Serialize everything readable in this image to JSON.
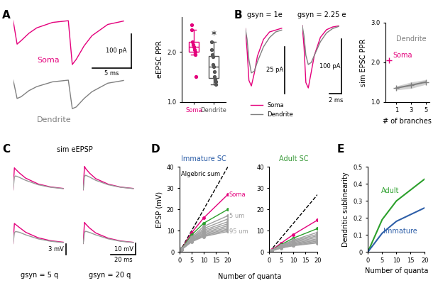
{
  "chart_data": [
    {
      "panel": "A",
      "type": "line",
      "tick_labels": false,
      "x": [
        0,
        0.5,
        1,
        2,
        3,
        5,
        7,
        7.5,
        8,
        9,
        10,
        12,
        14
      ],
      "xlim": [
        0,
        15
      ],
      "ylim": [
        -140,
        10
      ],
      "series": [
        {
          "name": "Soma",
          "color": "#e4007c",
          "values": [
            0,
            -70,
            -60,
            -38,
            -22,
            -6,
            -1,
            -130,
            -115,
            -75,
            -45,
            -12,
            -2
          ]
        }
      ],
      "scale_bars": [
        {
          "axis": "y",
          "value": 100,
          "label": "100 pA"
        },
        {
          "axis": "x",
          "value": 5,
          "label": "5 ms"
        }
      ]
    },
    {
      "type": "line",
      "tick_labels": false,
      "x": [
        0,
        0.5,
        1,
        2,
        3,
        5,
        7,
        7.5,
        8,
        9,
        10,
        12,
        14
      ],
      "xlim": [
        0,
        15
      ],
      "ylim": [
        -140,
        10
      ],
      "series": [
        {
          "name": "Dendrite",
          "color": "#808080",
          "values": [
            0,
            -55,
            -50,
            -32,
            -20,
            -6,
            -1,
            -85,
            -80,
            -55,
            -35,
            -10,
            -2
          ]
        }
      ]
    },
    {
      "type": "box",
      "ylabel": "eEPSC PPR",
      "categories": [
        "Soma",
        "Dendrite"
      ],
      "colors": [
        "#e4007c",
        "#555555"
      ],
      "values": [
        [
          2.55,
          2.45,
          2.2,
          2.15,
          2.1,
          2.05,
          2.0,
          1.95,
          1.5
        ],
        [
          2.2,
          2.05,
          1.95,
          1.9,
          1.75,
          1.7,
          1.6,
          1.5,
          1.45,
          1.4,
          1.35
        ]
      ],
      "ylim": [
        1.0,
        2.7
      ],
      "yticks": [
        {
          "value": 1.0,
          "label": "1.0"
        },
        {
          "value": 2.0,
          "label": "2.0"
        }
      ],
      "annotations": [
        {
          "text": "*",
          "category": "Dendrite"
        }
      ]
    },
    {
      "panel": "B",
      "type": "line",
      "tick_labels": false,
      "title": "gsyn = 1e",
      "legend": "upper left",
      "x": [
        0,
        0.3,
        0.6,
        1,
        1.5,
        2,
        3,
        4,
        5,
        6
      ],
      "xlim": [
        0,
        6.5
      ],
      "ylim": [
        -35,
        3
      ],
      "series": [
        {
          "name": "Soma",
          "color": "#e4007c",
          "values": [
            0,
            -12,
            -28,
            -31,
            -24,
            -15,
            -6,
            -2,
            -1,
            0
          ]
        },
        {
          "name": "Dendrite",
          "color": "#808080",
          "values": [
            0,
            -6,
            -17,
            -24,
            -23,
            -18,
            -10,
            -5,
            -2,
            -1
          ]
        }
      ],
      "scale_bars": [
        {
          "axis": "y",
          "value": 25,
          "label": "25 pA"
        }
      ]
    },
    {
      "type": "line",
      "tick_labels": false,
      "title": "gsyn = 2.25 e",
      "x": [
        0,
        0.3,
        0.6,
        1,
        1.5,
        2,
        3,
        4,
        5,
        6
      ],
      "xlim": [
        0,
        6.5
      ],
      "ylim": [
        -125,
        5
      ],
      "series": [
        {
          "color": "#e4007c",
          "values": [
            0,
            -40,
            -105,
            -115,
            -85,
            -55,
            -22,
            -8,
            -3,
            -1
          ]
        },
        {
          "color": "#808080",
          "values": [
            0,
            -20,
            -55,
            -72,
            -68,
            -55,
            -30,
            -14,
            -6,
            -2
          ]
        }
      ],
      "scale_bars": [
        {
          "axis": "y",
          "value": 100,
          "label": "100 pA"
        },
        {
          "axis": "x",
          "value": 2,
          "label": "2 ms"
        }
      ]
    },
    {
      "type": "line",
      "ylabel": "sim EPSC PPR",
      "xlabel": "# of branches",
      "xlim": [
        -0.5,
        5.5
      ],
      "xticks": [
        1,
        3,
        5
      ],
      "ylim": [
        1.0,
        3.0
      ],
      "yticks": [
        {
          "value": 1.0,
          "label": "1.0"
        },
        {
          "value": 2.0,
          "label": "2.0"
        },
        {
          "value": 3.0,
          "label": "3.0"
        }
      ],
      "marker": "+",
      "series": [
        {
          "name": "Soma",
          "color": "#e4007c",
          "x": [
            0
          ],
          "values": [
            2.05
          ]
        },
        {
          "name": "Dendrite",
          "color": "#808080",
          "x": [
            1,
            3,
            5
          ],
          "values": [
            1.35,
            1.42,
            1.5
          ],
          "errors": [
            0.05,
            0.08,
            0.06
          ]
        }
      ]
    },
    {
      "panel": "C",
      "type": "line",
      "tick_labels": false,
      "x": [
        0,
        1,
        2,
        5,
        10,
        20,
        30,
        40
      ],
      "xlim": [
        0,
        42
      ],
      "ylim": [
        -3,
        7
      ],
      "series": [
        {
          "color": "#e4007c",
          "values": [
            0,
            6,
            5.6,
            4.6,
            3.2,
            1.6,
            0.8,
            0.4
          ]
        },
        {
          "color": "#999999",
          "values": [
            0,
            3.5,
            3.8,
            3.4,
            2.6,
            1.4,
            0.7,
            0.35
          ]
        }
      ]
    },
    {
      "type": "line",
      "tick_labels": false,
      "x": [
        0,
        1,
        2,
        5,
        10,
        20,
        30,
        40
      ],
      "xlim": [
        0,
        42
      ],
      "ylim": [
        -10,
        23
      ],
      "series": [
        {
          "color": "#e4007c",
          "values": [
            0,
            21,
            19,
            15,
            10,
            5,
            2.4,
            1.2
          ]
        },
        {
          "color": "#999999",
          "values": [
            0,
            12,
            13,
            11.5,
            8.5,
            4.5,
            2.2,
            1.1
          ]
        }
      ]
    },
    {
      "type": "line",
      "tick_labels": false,
      "x": [
        0,
        1,
        2,
        5,
        10,
        20,
        30,
        40
      ],
      "xlim": [
        0,
        42
      ],
      "ylim": [
        -3,
        7
      ],
      "series": [
        {
          "color": "#e4007c",
          "values": [
            0,
            5.5,
            5.2,
            4.4,
            3.1,
            1.6,
            0.8,
            0.4
          ]
        },
        {
          "color": "#999999",
          "values": [
            0,
            3,
            3.3,
            3.1,
            2.4,
            1.3,
            0.65,
            0.3
          ]
        }
      ],
      "scale_bars": [
        {
          "axis": "y",
          "value": 3,
          "label": "3 mV"
        }
      ]
    },
    {
      "type": "line",
      "tick_labels": false,
      "x": [
        0,
        1,
        2,
        5,
        10,
        20,
        30,
        40
      ],
      "xlim": [
        0,
        42
      ],
      "ylim": [
        -10,
        23
      ],
      "series": [
        {
          "color": "#e4007c",
          "values": [
            0,
            19,
            17.5,
            14,
            9.5,
            4.8,
            2.3,
            1.1
          ]
        },
        {
          "color": "#999999",
          "values": [
            0,
            10,
            11,
            10,
            7.8,
            4.2,
            2,
            1
          ]
        }
      ],
      "scale_bars": [
        {
          "axis": "y",
          "value": 10,
          "label": "10 mV"
        },
        {
          "axis": "x",
          "value": 20,
          "label": "20 ms"
        }
      ]
    },
    {
      "panel": "D",
      "type": "line",
      "title": "Immature SC",
      "ylabel": "EPSP (mV)",
      "x": [
        0,
        1,
        5,
        10,
        20
      ],
      "xlim": [
        0,
        20
      ],
      "xticks": [
        0,
        5,
        10,
        15,
        20
      ],
      "ylim": [
        0,
        40
      ],
      "yticks": [
        0,
        10,
        20,
        30,
        40
      ],
      "marker": "o",
      "series": [
        {
          "name": "Algebric sum",
          "color": "#000000",
          "line_style": "dashed",
          "marker": "none",
          "x": [
            0,
            20
          ],
          "values": [
            0,
            40
          ]
        },
        {
          "name": "Soma",
          "color": "#e4007c",
          "values": [
            0,
            1.8,
            9,
            16,
            27
          ]
        },
        {
          "color": "#2ca02c",
          "values": [
            0,
            1.7,
            8,
            13.5,
            20
          ]
        },
        {
          "name": "5 um",
          "color": "#a0a0a0",
          "values": [
            0,
            1.6,
            7,
            12,
            17
          ]
        },
        {
          "color": "#a0a0a0",
          "values": [
            0,
            1.5,
            6.5,
            11,
            15.5
          ]
        },
        {
          "color": "#a0a0a0",
          "values": [
            0,
            1.5,
            6.2,
            10.2,
            14.2
          ]
        },
        {
          "color": "#a0a0a0",
          "values": [
            0,
            1.4,
            5.9,
            9.6,
            13.2
          ]
        },
        {
          "color": "#a0a0a0",
          "values": [
            0,
            1.4,
            5.6,
            9,
            12.3
          ]
        },
        {
          "color": "#a0a0a0",
          "values": [
            0,
            1.3,
            5.3,
            8.5,
            11.5
          ]
        },
        {
          "color": "#a0a0a0",
          "values": [
            0,
            1.3,
            5.1,
            8,
            10.8
          ]
        },
        {
          "color": "#a0a0a0",
          "values": [
            0,
            1.2,
            4.9,
            7.6,
            10.2
          ]
        },
        {
          "name": "95 um",
          "color": "#a0a0a0",
          "values": [
            0,
            1.2,
            4.7,
            7.2,
            9.6
          ]
        }
      ]
    },
    {
      "type": "line",
      "title": "Adult SC",
      "x": [
        0,
        1,
        5,
        10,
        20
      ],
      "xlim": [
        0,
        20
      ],
      "xticks": [
        0,
        5,
        10,
        15,
        20
      ],
      "ylim": [
        0,
        40
      ],
      "yticks": [
        0,
        10,
        20,
        30,
        40
      ],
      "marker": "o",
      "series": [
        {
          "color": "#000000",
          "line_style": "dashed",
          "marker": "none",
          "x": [
            0,
            20
          ],
          "values": [
            0,
            27
          ]
        },
        {
          "color": "#e4007c",
          "values": [
            0,
            0.9,
            4.2,
            8.2,
            15
          ]
        },
        {
          "color": "#2ca02c",
          "values": [
            0,
            0.8,
            3.5,
            6.5,
            11
          ]
        },
        {
          "color": "#a0a0a0",
          "values": [
            0,
            0.75,
            3.2,
            5.6,
            9.2
          ]
        },
        {
          "color": "#a0a0a0",
          "values": [
            0,
            0.7,
            3,
            5.2,
            8.3
          ]
        },
        {
          "color": "#a0a0a0",
          "values": [
            0,
            0.7,
            2.8,
            4.8,
            7.6
          ]
        },
        {
          "color": "#a0a0a0",
          "values": [
            0,
            0.65,
            2.6,
            4.4,
            6.9
          ]
        },
        {
          "color": "#a0a0a0",
          "values": [
            0,
            0.6,
            2.4,
            4,
            6.2
          ]
        },
        {
          "color": "#a0a0a0",
          "values": [
            0,
            0.6,
            2.2,
            3.7,
            5.6
          ]
        },
        {
          "color": "#a0a0a0",
          "values": [
            0,
            0.55,
            2.1,
            3.4,
            5.1
          ]
        },
        {
          "color": "#a0a0a0",
          "values": [
            0,
            0.5,
            1.9,
            3.1,
            4.6
          ]
        },
        {
          "color": "#a0a0a0",
          "values": [
            0,
            0.5,
            1.8,
            2.9,
            4.2
          ]
        }
      ]
    },
    {
      "panel": "E",
      "type": "line",
      "ylabel": "Dendritic sublinearity",
      "xlabel": "Number of quanta",
      "x": [
        0,
        5,
        10,
        20
      ],
      "xlim": [
        0,
        20
      ],
      "xticks": [
        0,
        5,
        10,
        15,
        20
      ],
      "ylim": [
        0,
        0.5
      ],
      "yticks": [
        0,
        0.1,
        0.2,
        0.3,
        0.4,
        0.5
      ],
      "series": [
        {
          "name": "Adult",
          "color": "#2ca02c",
          "values": [
            0,
            0.19,
            0.3,
            0.43
          ]
        },
        {
          "name": "Immature",
          "color": "#2e5fa8",
          "values": [
            0,
            0.11,
            0.18,
            0.26
          ]
        }
      ]
    }
  ],
  "figure_texts": {
    "C_title": "sim eEPSP",
    "C_columns": [
      "gsyn = 5 q",
      "gsyn = 20 q"
    ],
    "D_xlabel": "Number of quanta"
  }
}
